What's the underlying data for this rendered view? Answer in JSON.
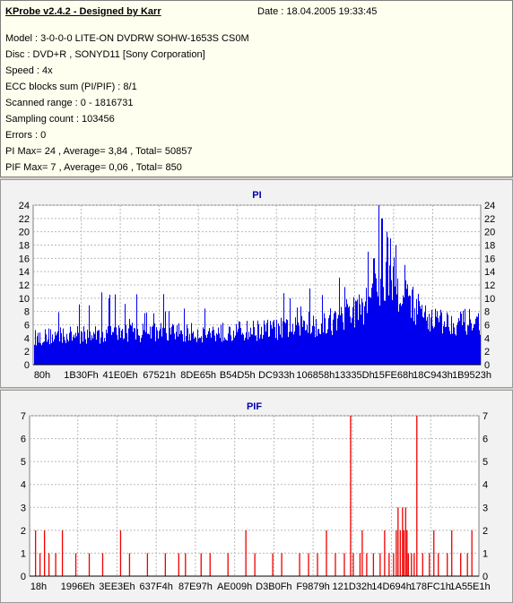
{
  "info": {
    "title": "KProbe v2.4.2 - Designed by Karr",
    "date": "Date : 18.04.2005 19:33:45",
    "lines": [
      "Model : 3-0-0-0 LITE-ON DVDRW SOHW-1653S CS0M",
      "Disc : DVD+R , SONYD11 [Sony Corporation]",
      "Speed : 4x",
      "ECC blocks sum (PI/PIF) : 8/1",
      "Scanned range : 0 - 1816731",
      "Sampling count : 103456",
      "Errors : 0",
      "PI Max= 24 , Average= 3,84 , Total= 50857",
      "PIF Max= 7 , Average= 0,06 , Total= 850"
    ]
  },
  "colors": {
    "pi": "#0000ee",
    "pif": "#ee0000",
    "grid": "#b9b9b9",
    "title": "#0000aa"
  },
  "chart_data": [
    {
      "type": "bar",
      "title": "PI",
      "ylim": [
        0,
        24
      ],
      "yticks": [
        0,
        2,
        4,
        6,
        8,
        10,
        12,
        14,
        16,
        18,
        20,
        22,
        24
      ],
      "xticks": [
        "80h",
        "1B30Fh",
        "41E0Eh",
        "67521h",
        "8DE65h",
        "B54D5h",
        "DC933h",
        "106858h",
        "13335Dh",
        "15FE68h",
        "18C943h",
        "1B9523h"
      ],
      "grid": true,
      "envelope": [
        [
          0,
          5
        ],
        [
          0.05,
          5.5
        ],
        [
          0.1,
          5.5
        ],
        [
          0.2,
          6
        ],
        [
          0.3,
          6
        ],
        [
          0.4,
          6
        ],
        [
          0.5,
          6.5
        ],
        [
          0.6,
          7
        ],
        [
          0.65,
          7.5
        ],
        [
          0.7,
          9
        ],
        [
          0.74,
          11
        ],
        [
          0.77,
          15
        ],
        [
          0.79,
          17
        ],
        [
          0.82,
          14
        ],
        [
          0.85,
          11
        ],
        [
          0.88,
          9
        ],
        [
          0.92,
          8
        ],
        [
          0.96,
          8
        ],
        [
          1,
          8
        ]
      ],
      "peaks": [
        [
          0.771,
          24
        ],
        [
          0.778,
          22
        ],
        [
          0.789,
          20
        ],
        [
          0.797,
          19
        ],
        [
          0.81,
          18
        ],
        [
          0.747,
          17
        ],
        [
          0.76,
          16
        ],
        [
          0.83,
          15
        ]
      ]
    },
    {
      "type": "bar",
      "title": "PIF",
      "ylim": [
        0,
        7
      ],
      "yticks": [
        0,
        1,
        2,
        3,
        4,
        5,
        6,
        7
      ],
      "xticks": [
        "18h",
        "1996Eh",
        "3EE3Eh",
        "637F4h",
        "87E97h",
        "AE009h",
        "D3B0Fh",
        "F9879h",
        "121D32h",
        "14D694h",
        "178FC1h",
        "1A55E1h"
      ],
      "grid": true,
      "bars": [
        [
          0.01,
          2
        ],
        [
          0.02,
          1
        ],
        [
          0.03,
          2
        ],
        [
          0.04,
          1
        ],
        [
          0.055,
          1
        ],
        [
          0.07,
          2
        ],
        [
          0.1,
          1
        ],
        [
          0.13,
          1
        ],
        [
          0.16,
          1
        ],
        [
          0.2,
          2
        ],
        [
          0.22,
          1
        ],
        [
          0.26,
          1
        ],
        [
          0.3,
          1
        ],
        [
          0.33,
          1
        ],
        [
          0.345,
          1
        ],
        [
          0.38,
          1
        ],
        [
          0.4,
          1
        ],
        [
          0.44,
          1
        ],
        [
          0.48,
          2
        ],
        [
          0.5,
          1
        ],
        [
          0.54,
          1
        ],
        [
          0.56,
          1
        ],
        [
          0.6,
          1
        ],
        [
          0.62,
          1
        ],
        [
          0.64,
          1
        ],
        [
          0.66,
          2
        ],
        [
          0.68,
          1
        ],
        [
          0.7,
          1
        ],
        [
          0.714,
          7
        ],
        [
          0.72,
          1
        ],
        [
          0.735,
          1
        ],
        [
          0.74,
          2
        ],
        [
          0.75,
          1
        ],
        [
          0.765,
          1
        ],
        [
          0.78,
          1
        ],
        [
          0.79,
          2
        ],
        [
          0.8,
          1
        ],
        [
          0.81,
          1
        ],
        [
          0.816,
          2
        ],
        [
          0.82,
          3
        ],
        [
          0.825,
          2
        ],
        [
          0.83,
          3
        ],
        [
          0.833,
          2
        ],
        [
          0.837,
          3
        ],
        [
          0.84,
          2
        ],
        [
          0.843,
          1
        ],
        [
          0.85,
          1
        ],
        [
          0.856,
          1
        ],
        [
          0.862,
          7
        ],
        [
          0.875,
          1
        ],
        [
          0.89,
          1
        ],
        [
          0.9,
          2
        ],
        [
          0.91,
          1
        ],
        [
          0.93,
          1
        ],
        [
          0.94,
          2
        ],
        [
          0.96,
          1
        ],
        [
          0.975,
          1
        ],
        [
          0.985,
          2
        ]
      ]
    }
  ]
}
